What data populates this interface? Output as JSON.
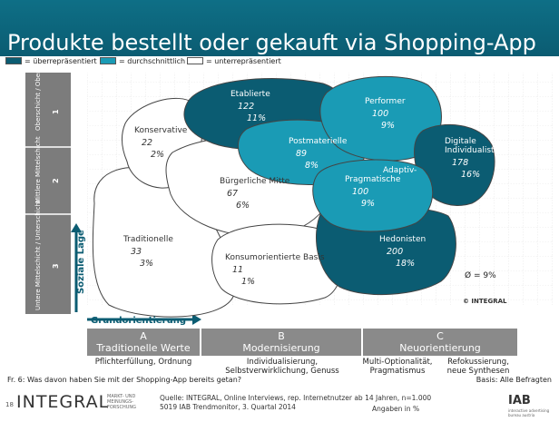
{
  "title": "Produkte bestellt oder gekauft via Shopping-App",
  "legend": [
    {
      "label": "= überrepräsentiert",
      "color": "#0b5c72"
    },
    {
      "label": "= durchschnittlich",
      "color": "#1a9bb5"
    },
    {
      "label": "= unterrepräsentiert",
      "color": "#ffffff"
    }
  ],
  "chart_data": {
    "type": "other",
    "ylabel": "Soziale Lage",
    "xlabel": "Grundorientierung",
    "y_rows": [
      {
        "id": "1",
        "label": "Oberschicht / Obere Mittelschicht"
      },
      {
        "id": "2",
        "label": "Mittlere Mittelschicht"
      },
      {
        "id": "3",
        "label": "Untere Mittelschicht / Unterschicht"
      }
    ],
    "x_columns": [
      {
        "id": "A",
        "label": "Traditionelle Werte",
        "desc": "Pflichterfüllung, Ordnung"
      },
      {
        "id": "B",
        "label": "Modernisierung",
        "desc": "Individualisierung, Selbstverwirklichung, Genuss"
      },
      {
        "id": "C",
        "label": "Neuorientierung",
        "desc": "Multi-Optionalität, Pragmatismus",
        "desc2": "Refokussierung, neue Synthesen"
      }
    ],
    "milieus": [
      {
        "name": "Konservative",
        "index": "22",
        "share": "2%",
        "level": "under"
      },
      {
        "name": "Etablierte",
        "index": "122",
        "share": "11%",
        "level": "over"
      },
      {
        "name": "Performer",
        "index": "100",
        "share": "9%",
        "level": "avg"
      },
      {
        "name": "Postmaterielle",
        "index": "89",
        "share": "8%",
        "level": "avg"
      },
      {
        "name": "Digitale Individualisten",
        "index": "178",
        "share": "16%",
        "level": "over"
      },
      {
        "name": "Bürgerliche Mitte",
        "index": "67",
        "share": "6%",
        "level": "under"
      },
      {
        "name": "Adaptiv-Pragmatische",
        "index": "100",
        "share": "9%",
        "level": "avg"
      },
      {
        "name": "Traditionelle",
        "index": "33",
        "share": "3%",
        "level": "under"
      },
      {
        "name": "Konsumorientierte Basis",
        "index": "11",
        "share": "1%",
        "level": "under"
      },
      {
        "name": "Hedonisten",
        "index": "200",
        "share": "18%",
        "level": "over"
      }
    ],
    "average": "Ø =   9%",
    "copyright": "© INTEGRAL"
  },
  "question": "Fr. 6: Was davon haben Sie mit der Shopping-App bereits getan?",
  "basis": "Basis: Alle Befragten",
  "footer": {
    "page": "18",
    "brand": "INTEGRAL",
    "brand_sub": "MARKT- UND MEINUNGS- FORSCHUNG",
    "source_line1": "Quelle: INTEGRAL, Online Interviews, rep. Internetnutzer ab 14 Jahren, n=1.000",
    "source_line2": "5019 IAB Trendmonitor, 3. Quartal 2014",
    "unit": "Angaben in %",
    "iab": "IAB",
    "iab_sub": "interactive advertising bureau austria"
  }
}
